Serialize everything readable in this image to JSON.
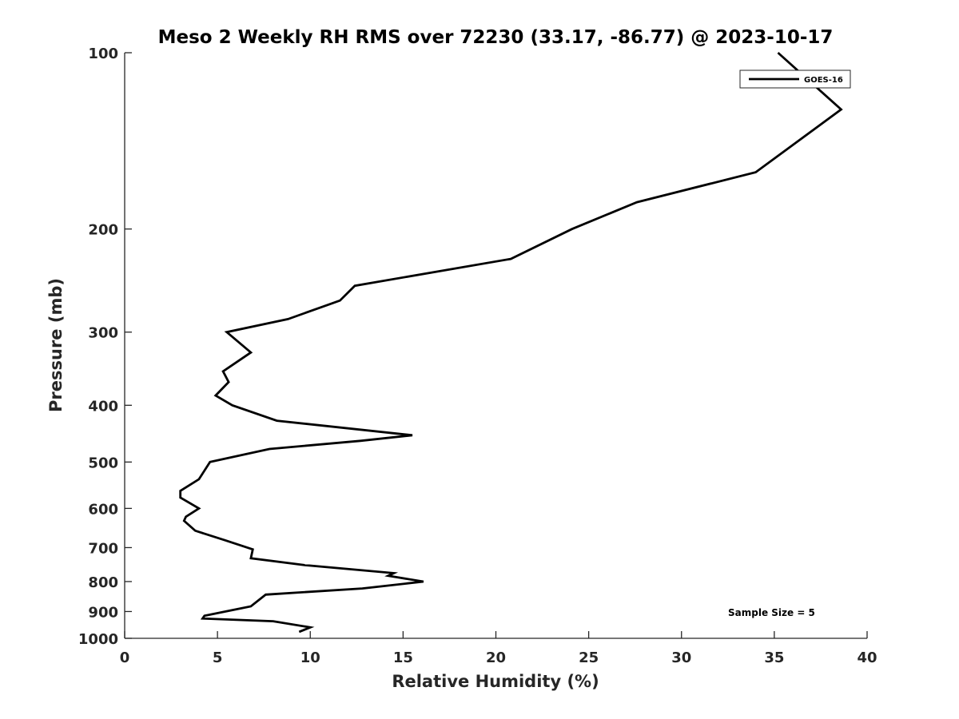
{
  "chart_data": {
    "type": "line",
    "title": "Meso 2 Weekly RH RMS over 72230 (33.17, -86.77) @ 2023-10-17",
    "xlabel": "Relative Humidity (%)",
    "ylabel": "Pressure (mb)",
    "xlim": [
      0,
      40
    ],
    "ylim": [
      100,
      1000
    ],
    "y_scale": "log",
    "y_reversed": true,
    "xticks": [
      "0",
      "5",
      "10",
      "15",
      "20",
      "25",
      "30",
      "35",
      "40"
    ],
    "yticks": [
      "100",
      "200",
      "300",
      "400",
      "500",
      "600",
      "700",
      "800",
      "900",
      "1000"
    ],
    "grid": false,
    "legend_position": "top-right",
    "series": [
      {
        "name": "GOES-16",
        "color": "#000000",
        "x": [
          9.4,
          10.0,
          8.0,
          4.2,
          4.3,
          6.8,
          7.6,
          12.8,
          16.1,
          14.2,
          14.5,
          9.7,
          6.8,
          6.9,
          5.4,
          3.8,
          3.2,
          3.3,
          4.0,
          3.0,
          3.0,
          4.0,
          4.6,
          7.8,
          12.7,
          15.5,
          8.2,
          5.8,
          4.9,
          5.6,
          5.3,
          6.8,
          5.5,
          8.8,
          11.6,
          12.4,
          20.8,
          24.1,
          27.6,
          34.0,
          38.6,
          35.2
        ]
      }
    ],
    "pressure": [
      975,
      958,
      935,
      925,
      915,
      882,
      842,
      822,
      800,
      782,
      774,
      750,
      730,
      705,
      680,
      655,
      630,
      620,
      600,
      575,
      560,
      535,
      500,
      475,
      460,
      450,
      425,
      400,
      385,
      365,
      350,
      325,
      300,
      285,
      265,
      250,
      225,
      200,
      180,
      160,
      125,
      100
    ]
  },
  "legend": {
    "label": "GOES-16"
  },
  "annotation": {
    "sample_size": "Sample Size = 5"
  }
}
